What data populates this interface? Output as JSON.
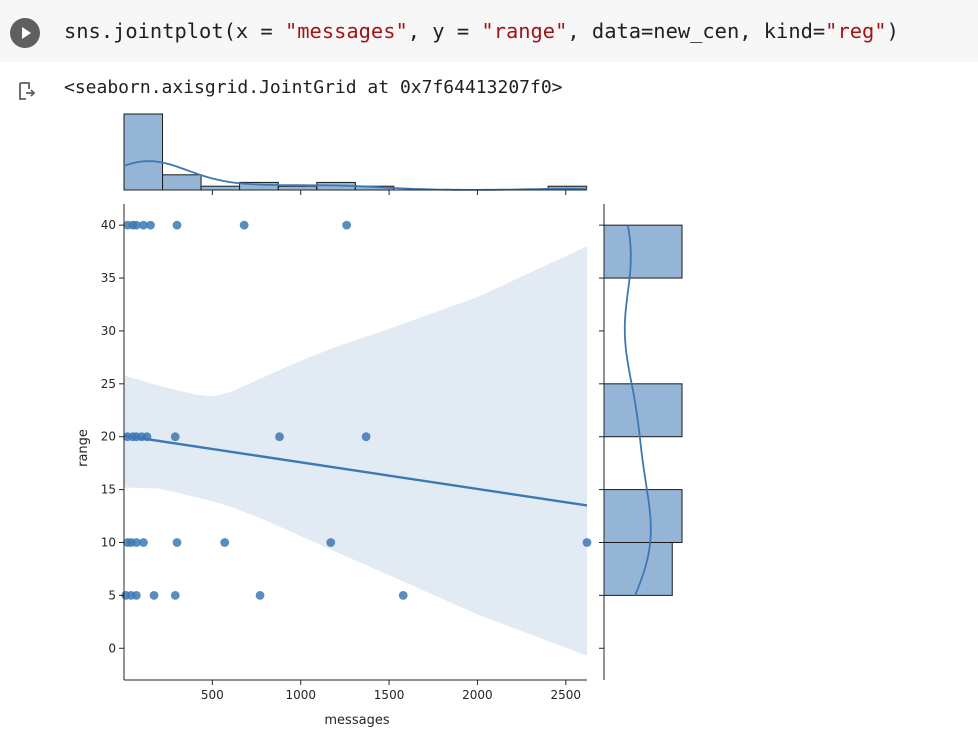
{
  "cell": {
    "code": {
      "p1": "sns.jointplot(x = ",
      "s1": "\"messages\"",
      "p2": ", y = ",
      "s2": "\"range\"",
      "p3": ", data=new_cen, kind=",
      "s3": "\"reg\"",
      "p4": ")"
    },
    "output_text": "<seaborn.axisgrid.JointGrid at 0x7f64413207f0>",
    "run_icon": "play-icon",
    "output_icon": "output-arrow-icon"
  },
  "chart_data": {
    "type": "scatter",
    "kind": "reg",
    "title": "",
    "xlabel": "messages",
    "ylabel": "range",
    "xlim": [
      0,
      2620
    ],
    "ylim": [
      -3,
      42
    ],
    "xticks": [
      500,
      1000,
      1500,
      2000,
      2500
    ],
    "yticks": [
      0,
      5,
      10,
      15,
      20,
      25,
      30,
      35,
      40
    ],
    "color": "#3c78b4",
    "points": [
      [
        20,
        40
      ],
      [
        50,
        40
      ],
      [
        70,
        40
      ],
      [
        110,
        40
      ],
      [
        150,
        40
      ],
      [
        300,
        40
      ],
      [
        680,
        40
      ],
      [
        1260,
        40
      ],
      [
        20,
        20
      ],
      [
        50,
        20
      ],
      [
        70,
        20
      ],
      [
        100,
        20
      ],
      [
        130,
        20
      ],
      [
        290,
        20
      ],
      [
        880,
        20
      ],
      [
        1370,
        20
      ],
      [
        20,
        10
      ],
      [
        40,
        10
      ],
      [
        70,
        10
      ],
      [
        110,
        10
      ],
      [
        300,
        10
      ],
      [
        570,
        10
      ],
      [
        1170,
        10
      ],
      [
        2620,
        10
      ],
      [
        10,
        5
      ],
      [
        40,
        5
      ],
      [
        70,
        5
      ],
      [
        170,
        5
      ],
      [
        290,
        5
      ],
      [
        770,
        5
      ],
      [
        1580,
        5
      ]
    ],
    "regression": {
      "x": [
        0,
        2620
      ],
      "y": [
        20.1,
        13.5
      ]
    },
    "confidence_band": {
      "x": [
        0,
        200,
        400,
        500,
        600,
        800,
        1000,
        1200,
        1500,
        2000,
        2620
      ],
      "upper": [
        25.8,
        24.8,
        24.0,
        23.8,
        24.2,
        25.7,
        27.2,
        28.5,
        30.2,
        33.2,
        38.0
      ],
      "lower": [
        15.2,
        15.1,
        14.3,
        13.9,
        13.4,
        12.1,
        10.6,
        9.1,
        6.9,
        3.2,
        -0.7
      ]
    },
    "marginal_x": {
      "bin_edges": [
        0,
        218,
        436,
        654,
        873,
        1091,
        1309,
        1527,
        1745,
        1964,
        2182,
        2400,
        2618
      ],
      "counts": [
        20,
        4,
        1,
        2,
        1,
        2,
        1,
        0,
        0,
        0,
        0,
        1
      ]
    },
    "marginal_y": {
      "bins": [
        {
          "lo": 5,
          "hi": 10,
          "count": 7
        },
        {
          "lo": 10,
          "hi": 15,
          "count": 8
        },
        {
          "lo": 20,
          "hi": 25,
          "count": 8
        },
        {
          "lo": 35,
          "hi": 40,
          "count": 8
        }
      ],
      "max_count": 8
    }
  }
}
